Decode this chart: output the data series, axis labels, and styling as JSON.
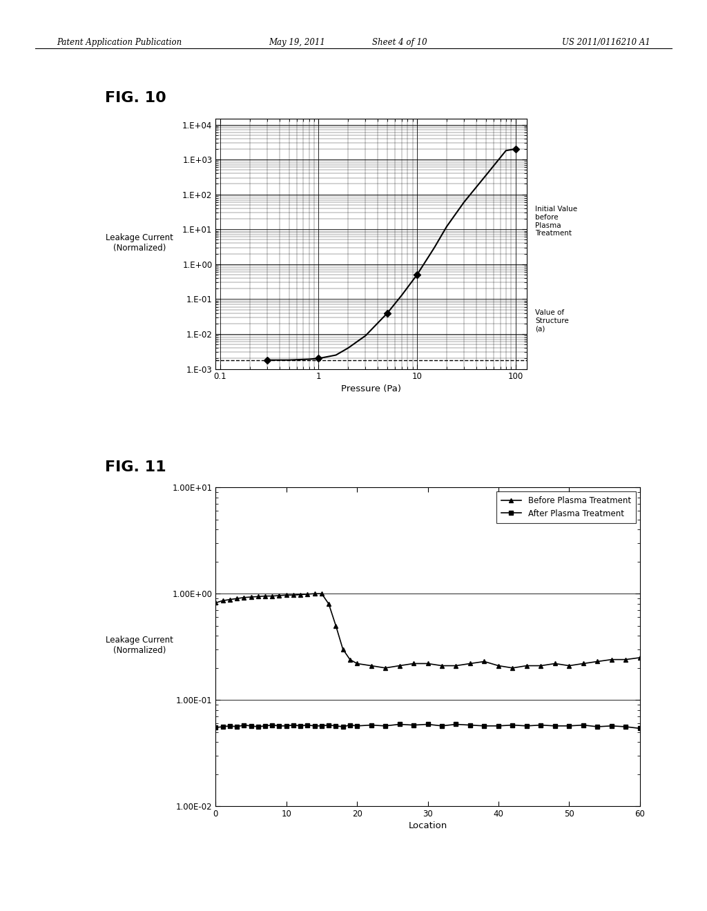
{
  "fig10": {
    "title": "FIG. 10",
    "xlabel": "Pressure (Pa)",
    "ylabel": "Leakage Current\n(Normalized)",
    "xticks": [
      0.1,
      1,
      10,
      100
    ],
    "xticklabels": [
      "0.1",
      "1",
      "10",
      "100"
    ],
    "yticks": [
      0.001,
      0.01,
      0.1,
      1.0,
      10.0,
      100.0,
      1000.0,
      10000.0
    ],
    "yticklabels": [
      "1.E-03",
      "1.E-02",
      "1.E-01",
      "1.E+00",
      "1.E+01",
      "1.E+02",
      "1.E+03",
      "1.E+04"
    ],
    "curve_x": [
      0.3,
      0.5,
      0.8,
      1.0,
      1.5,
      2.0,
      3.0,
      5.0,
      7.0,
      10.0,
      15.0,
      20.0,
      30.0,
      50.0,
      80.0,
      100.0
    ],
    "curve_y": [
      0.0018,
      0.0018,
      0.0019,
      0.002,
      0.0025,
      0.004,
      0.009,
      0.04,
      0.13,
      0.5,
      3.0,
      12.0,
      60.0,
      350.0,
      1800.0,
      2000.0
    ],
    "dashed_y": 0.0018,
    "marker1_x": 0.3,
    "marker1_y": 0.0018,
    "marker2_x": 1.0,
    "marker2_y": 0.002,
    "marker3_x": 5.0,
    "marker3_y": 0.04,
    "marker4_x": 10.0,
    "marker4_y": 0.5,
    "marker5_x": 100.0,
    "marker5_y": 2000.0,
    "annotation1_text": "Initial Value\nbefore\nPlasma\nTreatment",
    "annotation2_text": "Value of\nStructure\n(a)"
  },
  "fig11": {
    "title": "FIG. 11",
    "xlabel": "Location",
    "ylabel": "Leakage Current\n(Normalized)",
    "xlim": [
      0,
      60
    ],
    "ylim": [
      0.01,
      10.0
    ],
    "xticks": [
      0,
      10,
      20,
      30,
      40,
      50,
      60
    ],
    "xticklabels": [
      "0",
      "10",
      "20",
      "30",
      "40",
      "50",
      "60"
    ],
    "yticks": [
      0.01,
      0.1,
      1.0,
      10.0
    ],
    "yticklabels": [
      "1.00E-02",
      "1.00E-01",
      "1.00E+00",
      "1.00E+01"
    ],
    "before_x": [
      0,
      1,
      2,
      3,
      4,
      5,
      6,
      7,
      8,
      9,
      10,
      11,
      12,
      13,
      14,
      15,
      16,
      17,
      18,
      19,
      20,
      22,
      24,
      26,
      28,
      30,
      32,
      34,
      36,
      38,
      40,
      42,
      44,
      46,
      48,
      50,
      52,
      54,
      56,
      58,
      60
    ],
    "before_y": [
      0.82,
      0.86,
      0.88,
      0.9,
      0.92,
      0.93,
      0.94,
      0.95,
      0.95,
      0.96,
      0.97,
      0.97,
      0.98,
      0.99,
      1.0,
      1.0,
      0.8,
      0.5,
      0.3,
      0.24,
      0.22,
      0.21,
      0.2,
      0.21,
      0.22,
      0.22,
      0.21,
      0.21,
      0.22,
      0.23,
      0.21,
      0.2,
      0.21,
      0.21,
      0.22,
      0.21,
      0.22,
      0.23,
      0.24,
      0.24,
      0.25
    ],
    "after_x": [
      0,
      1,
      2,
      3,
      4,
      5,
      6,
      7,
      8,
      9,
      10,
      11,
      12,
      13,
      14,
      15,
      16,
      17,
      18,
      19,
      20,
      22,
      24,
      26,
      28,
      30,
      32,
      34,
      36,
      38,
      40,
      42,
      44,
      46,
      48,
      50,
      52,
      54,
      56,
      58,
      60
    ],
    "after_y": [
      0.055,
      0.056,
      0.057,
      0.056,
      0.058,
      0.057,
      0.056,
      0.057,
      0.058,
      0.057,
      0.057,
      0.058,
      0.057,
      0.058,
      0.057,
      0.057,
      0.058,
      0.057,
      0.056,
      0.058,
      0.057,
      0.058,
      0.057,
      0.059,
      0.058,
      0.059,
      0.057,
      0.059,
      0.058,
      0.057,
      0.057,
      0.058,
      0.057,
      0.058,
      0.057,
      0.057,
      0.058,
      0.056,
      0.057,
      0.056,
      0.054
    ],
    "legend_before": "Before Plasma Treatment",
    "legend_after": "After Plasma Treatment"
  },
  "header_line1": "Patent Application Publication",
  "header_line2": "May 19, 2011",
  "header_line3": "Sheet 4 of 10",
  "header_line4": "US 2011/0116210 A1",
  "bg_color": "#ffffff",
  "text_color": "#000000"
}
